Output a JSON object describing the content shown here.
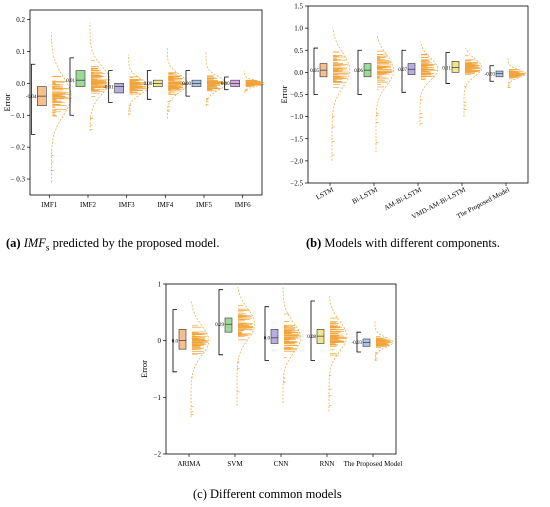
{
  "captions": {
    "a": {
      "label": "(a)",
      "pre": "",
      "em": "IMF",
      "sub": "s",
      "post": " predicted by the proposed model."
    },
    "b": {
      "label": "(b)",
      "text": " Models with different components."
    },
    "c": {
      "text": "(c) Different common models"
    }
  },
  "colors": {
    "scatter": "#f0a43a",
    "bracket": "#000000",
    "dashed": "#f0a43a"
  },
  "chart_data": [
    {
      "id": "a",
      "type": "raincloud",
      "ylabel": "Error",
      "ylim": [
        -0.35,
        0.23
      ],
      "yticks": [
        -0.3,
        -0.2,
        -0.1,
        0.0,
        0.1,
        0.2
      ],
      "ytick_labels": [
        "− 0.3",
        "− 0.2",
        "− 0.1",
        "0.0",
        "0.1",
        "0.2"
      ],
      "grid": false,
      "categories": [
        "IMF1",
        "IMF2",
        "IMF3",
        "IMF4",
        "IMF5",
        "IMF6"
      ],
      "mean_labels": [
        "-0.04",
        "0.01",
        "-0.01",
        "0.00",
        "0.00",
        "0.00"
      ],
      "box_colors": [
        "#f5bf8e",
        "#9fd99a",
        "#b9aee0",
        "#f0e68c",
        "#a9c4e8",
        "#d7a8e3"
      ],
      "series": [
        {
          "q1": -0.07,
          "median": -0.04,
          "q3": -0.01,
          "whisker_low": -0.16,
          "whisker_high": 0.06,
          "min": -0.31,
          "max": 0.16
        },
        {
          "q1": -0.01,
          "median": 0.01,
          "q3": 0.04,
          "whisker_low": -0.1,
          "whisker_high": 0.08,
          "min": -0.15,
          "max": 0.19
        },
        {
          "q1": -0.03,
          "median": -0.01,
          "q3": 0.0,
          "whisker_low": -0.06,
          "whisker_high": 0.04,
          "min": -0.1,
          "max": 0.09
        },
        {
          "q1": -0.01,
          "median": 0.0,
          "q3": 0.01,
          "whisker_low": -0.05,
          "whisker_high": 0.04,
          "min": -0.11,
          "max": 0.11
        },
        {
          "q1": -0.01,
          "median": 0.0,
          "q3": 0.01,
          "whisker_low": -0.04,
          "whisker_high": 0.04,
          "min": -0.07,
          "max": 0.1
        },
        {
          "q1": -0.01,
          "median": 0.0,
          "q3": 0.01,
          "whisker_low": -0.02,
          "whisker_high": 0.02,
          "min": -0.03,
          "max": 0.04
        }
      ]
    },
    {
      "id": "b",
      "type": "raincloud",
      "ylabel": "Error",
      "ylim": [
        -2.5,
        1.5
      ],
      "yticks": [
        -2.5,
        -2.0,
        -1.5,
        -1.0,
        -0.5,
        0.0,
        0.5,
        1.0,
        1.5
      ],
      "ytick_labels": [
        "−2.5",
        "−2.0",
        "−1.5",
        "−1.0",
        "−0.5",
        "0.0",
        "0.5",
        "1.0",
        "1.5"
      ],
      "grid": false,
      "categories": [
        "LSTM",
        "Bi-LSTM",
        "AM-Bi-LSTM",
        "VMD-AM-Bi-LSTM",
        "The Proposed Model"
      ],
      "mean_labels": [
        "0.05",
        "0.06",
        "0.07",
        "0.11",
        "-0.03"
      ],
      "box_colors": [
        "#f5bf8e",
        "#9fd99a",
        "#b9aee0",
        "#f0e68c",
        "#a9c4e8"
      ],
      "series": [
        {
          "q1": -0.1,
          "median": 0.05,
          "q3": 0.2,
          "whisker_low": -0.5,
          "whisker_high": 0.55,
          "min": -2.0,
          "max": 1.0
        },
        {
          "q1": -0.1,
          "median": 0.05,
          "q3": 0.2,
          "whisker_low": -0.5,
          "whisker_high": 0.5,
          "min": -1.8,
          "max": 0.85
        },
        {
          "q1": -0.05,
          "median": 0.07,
          "q3": 0.2,
          "whisker_low": -0.45,
          "whisker_high": 0.5,
          "min": -1.2,
          "max": 0.7
        },
        {
          "q1": 0.0,
          "median": 0.11,
          "q3": 0.25,
          "whisker_low": -0.25,
          "whisker_high": 0.45,
          "min": -1.0,
          "max": 0.55
        },
        {
          "q1": -0.1,
          "median": -0.03,
          "q3": 0.03,
          "whisker_low": -0.2,
          "whisker_high": 0.15,
          "min": -0.35,
          "max": 0.35
        }
      ]
    },
    {
      "id": "c",
      "type": "raincloud",
      "ylabel": "Error",
      "ylim": [
        -2.0,
        1.0
      ],
      "yticks": [
        -2,
        -1,
        0,
        1
      ],
      "ytick_labels": [
        "−2",
        "−1",
        "0",
        "1"
      ],
      "grid": false,
      "categories": [
        "ARIMA",
        "SVM",
        "CNN",
        "RNN",
        "The Proposed Model"
      ],
      "mean_labels": [
        "0.0",
        "0.29",
        "0.0",
        "0.08",
        "-0.03"
      ],
      "box_colors": [
        "#f5bf8e",
        "#9fd99a",
        "#b9aee0",
        "#f0e68c",
        "#a9c4e8"
      ],
      "series": [
        {
          "q1": -0.15,
          "median": 0.0,
          "q3": 0.2,
          "whisker_low": -0.55,
          "whisker_high": 0.55,
          "min": -1.35,
          "max": 0.7
        },
        {
          "q1": 0.15,
          "median": 0.29,
          "q3": 0.4,
          "whisker_low": -0.25,
          "whisker_high": 0.9,
          "min": -1.15,
          "max": 0.95
        },
        {
          "q1": -0.05,
          "median": 0.05,
          "q3": 0.2,
          "whisker_low": -0.35,
          "whisker_high": 0.6,
          "min": -1.1,
          "max": 0.95
        },
        {
          "q1": -0.05,
          "median": 0.08,
          "q3": 0.2,
          "whisker_low": -0.35,
          "whisker_high": 0.7,
          "min": -1.25,
          "max": 0.8
        },
        {
          "q1": -0.1,
          "median": -0.03,
          "q3": 0.03,
          "whisker_low": -0.2,
          "whisker_high": 0.15,
          "min": -0.35,
          "max": 0.35
        }
      ]
    }
  ]
}
